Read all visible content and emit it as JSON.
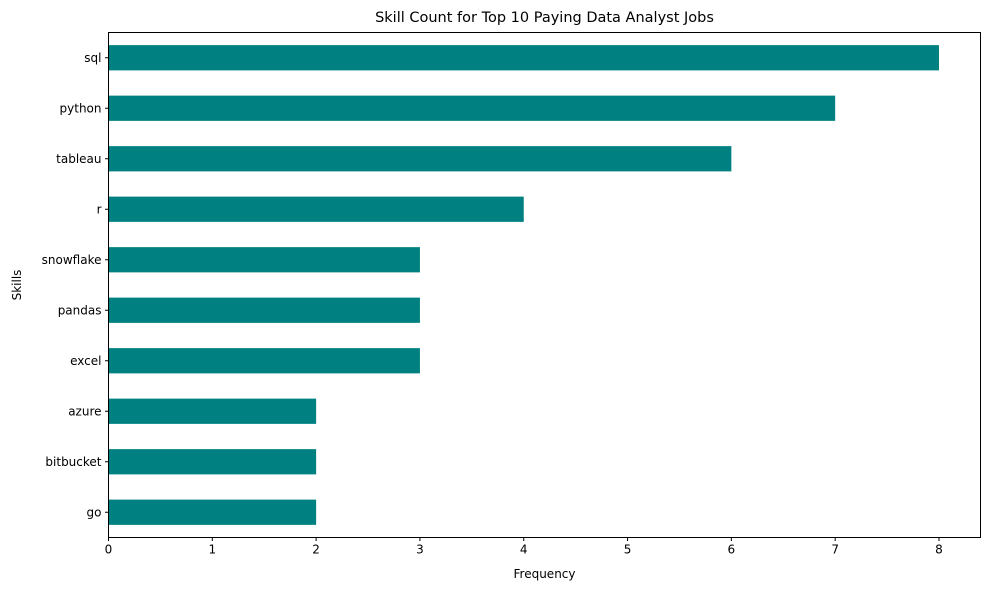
{
  "chart_data": {
    "type": "bar",
    "orientation": "horizontal",
    "title": "Skill Count for Top 10 Paying Data Analyst Jobs",
    "xlabel": "Frequency",
    "ylabel": "Skills",
    "categories": [
      "sql",
      "python",
      "tableau",
      "r",
      "snowflake",
      "pandas",
      "excel",
      "azure",
      "bitbucket",
      "go"
    ],
    "values": [
      8,
      7,
      6,
      4,
      3,
      3,
      3,
      2,
      2,
      2
    ],
    "xlim": [
      0,
      8.4
    ],
    "xticks": [
      0,
      1,
      2,
      3,
      4,
      5,
      6,
      7,
      8
    ],
    "bar_color": "#008080",
    "grid": false,
    "legend": "none"
  }
}
